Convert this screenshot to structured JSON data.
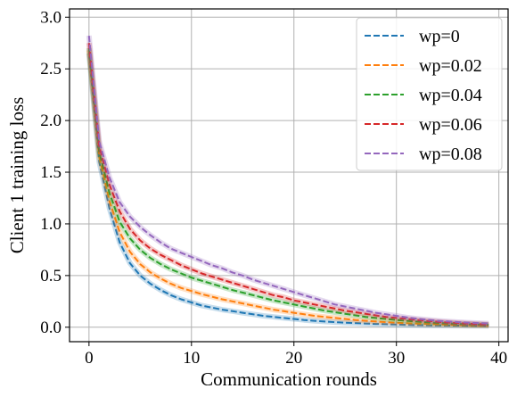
{
  "chart_data": {
    "type": "line",
    "title": "",
    "xlabel": "Communication rounds",
    "ylabel": "Client 1 training loss",
    "xlim": [
      -1.9,
      40.9
    ],
    "ylim": [
      -0.14,
      3.08
    ],
    "xticks": [
      0,
      10,
      20,
      30,
      40
    ],
    "yticks": [
      0.0,
      0.5,
      1.0,
      1.5,
      2.0,
      2.5,
      3.0
    ],
    "xtick_labels": [
      "0",
      "10",
      "20",
      "30",
      "40"
    ],
    "ytick_labels": [
      "0.0",
      "0.5",
      "1.0",
      "1.5",
      "2.0",
      "2.5",
      "3.0"
    ],
    "grid": true,
    "legend_position": "top-right",
    "line_style": "dashed",
    "x": [
      0,
      1,
      2,
      3,
      4,
      5,
      6,
      7,
      8,
      9,
      10,
      11,
      12,
      13,
      14,
      15,
      16,
      17,
      18,
      19,
      20,
      21,
      22,
      23,
      24,
      25,
      26,
      27,
      28,
      29,
      30,
      31,
      32,
      33,
      34,
      35,
      36,
      37,
      38,
      39
    ],
    "series": [
      {
        "name": "wp=0",
        "color": "#1f77b4",
        "values": [
          2.65,
          1.6,
          1.15,
          0.82,
          0.62,
          0.5,
          0.42,
          0.36,
          0.31,
          0.27,
          0.24,
          0.21,
          0.19,
          0.17,
          0.155,
          0.14,
          0.125,
          0.11,
          0.1,
          0.09,
          0.08,
          0.07,
          0.062,
          0.055,
          0.049,
          0.044,
          0.04,
          0.036,
          0.032,
          0.029,
          0.026,
          0.023,
          0.021,
          0.019,
          0.017,
          0.016,
          0.015,
          0.014,
          0.013,
          0.012
        ]
      },
      {
        "name": "wp=0.02",
        "color": "#ff7f0e",
        "values": [
          2.68,
          1.65,
          1.22,
          0.92,
          0.73,
          0.61,
          0.53,
          0.47,
          0.42,
          0.38,
          0.35,
          0.32,
          0.295,
          0.27,
          0.25,
          0.23,
          0.21,
          0.19,
          0.17,
          0.155,
          0.14,
          0.125,
          0.11,
          0.1,
          0.09,
          0.08,
          0.07,
          0.062,
          0.055,
          0.049,
          0.044,
          0.039,
          0.035,
          0.031,
          0.028,
          0.025,
          0.022,
          0.02,
          0.018,
          0.016
        ]
      },
      {
        "name": "wp=0.04",
        "color": "#2ca02c",
        "values": [
          2.7,
          1.7,
          1.3,
          1.02,
          0.86,
          0.75,
          0.67,
          0.61,
          0.56,
          0.52,
          0.48,
          0.45,
          0.42,
          0.39,
          0.36,
          0.335,
          0.31,
          0.285,
          0.26,
          0.24,
          0.22,
          0.2,
          0.18,
          0.16,
          0.145,
          0.13,
          0.115,
          0.1,
          0.09,
          0.08,
          0.07,
          0.062,
          0.055,
          0.048,
          0.042,
          0.037,
          0.033,
          0.029,
          0.026,
          0.023
        ]
      },
      {
        "name": "wp=0.06",
        "color": "#d62728",
        "values": [
          2.75,
          1.75,
          1.38,
          1.12,
          0.95,
          0.84,
          0.76,
          0.7,
          0.65,
          0.6,
          0.56,
          0.52,
          0.49,
          0.46,
          0.43,
          0.4,
          0.37,
          0.34,
          0.31,
          0.29,
          0.26,
          0.24,
          0.22,
          0.2,
          0.18,
          0.16,
          0.145,
          0.13,
          0.115,
          0.1,
          0.09,
          0.08,
          0.07,
          0.061,
          0.053,
          0.046,
          0.04,
          0.035,
          0.03,
          0.026
        ]
      },
      {
        "name": "wp=0.08",
        "color": "#9467bd",
        "values": [
          2.82,
          1.8,
          1.45,
          1.21,
          1.07,
          0.97,
          0.89,
          0.82,
          0.76,
          0.72,
          0.68,
          0.64,
          0.6,
          0.57,
          0.53,
          0.5,
          0.46,
          0.43,
          0.4,
          0.37,
          0.34,
          0.31,
          0.28,
          0.25,
          0.22,
          0.2,
          0.18,
          0.16,
          0.14,
          0.125,
          0.11,
          0.095,
          0.083,
          0.072,
          0.063,
          0.056,
          0.05,
          0.045,
          0.04,
          0.036
        ]
      }
    ]
  }
}
